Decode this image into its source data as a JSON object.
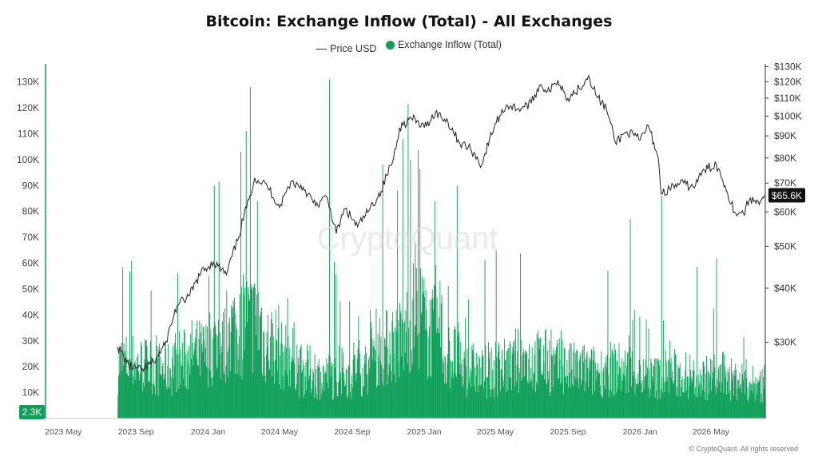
{
  "chart_data": {
    "type": "bar",
    "title": "Bitcoin: Exchange Inflow (Total) - All Exchanges",
    "legend_position": "top-center",
    "grid": false,
    "watermark": "CryptoQuant",
    "copyright": "© CryptoQuant. All rights reserved",
    "x_ticks": [
      "2023 May",
      "2023 Sep",
      "2024 Jan",
      "2024 May",
      "2024 Sep",
      "2025 Jan",
      "2025 May",
      "2025 Sep",
      "2026 Jan",
      "2026 May"
    ],
    "x_range": [
      "2023-04-01",
      "2026-08-01"
    ],
    "series": [
      {
        "name": "Price USD",
        "type": "line",
        "axis": "right",
        "color": "#222222",
        "dates": [
          "2023-08-01",
          "2023-08-20",
          "2023-09-10",
          "2023-10-01",
          "2023-10-20",
          "2023-11-10",
          "2023-12-01",
          "2023-12-20",
          "2024-01-10",
          "2024-02-01",
          "2024-02-20",
          "2024-03-10",
          "2024-03-20",
          "2024-04-10",
          "2024-05-01",
          "2024-05-20",
          "2024-06-10",
          "2024-07-01",
          "2024-07-20",
          "2024-08-05",
          "2024-08-20",
          "2024-09-10",
          "2024-10-01",
          "2024-10-20",
          "2024-11-10",
          "2024-11-20",
          "2024-12-10",
          "2025-01-01",
          "2025-01-20",
          "2025-02-10",
          "2025-03-01",
          "2025-03-20",
          "2025-04-08",
          "2025-05-01",
          "2025-05-20",
          "2025-06-10",
          "2025-07-01",
          "2025-07-15",
          "2025-08-01",
          "2025-08-15",
          "2025-09-01",
          "2025-09-20",
          "2025-10-06",
          "2025-10-20",
          "2025-11-05",
          "2025-11-20",
          "2025-12-10",
          "2026-01-01",
          "2026-01-15",
          "2026-02-01",
          "2026-02-06",
          "2026-02-20",
          "2026-03-10",
          "2026-04-01",
          "2026-04-20",
          "2026-05-10",
          "2026-05-25",
          "2026-06-10",
          "2026-06-25",
          "2026-07-05",
          "2026-07-20",
          "2026-07-31"
        ],
        "values": [
          29300,
          26500,
          25800,
          27000,
          29500,
          36500,
          38500,
          43500,
          46000,
          43000,
          51500,
          64000,
          72000,
          69000,
          61500,
          70500,
          68500,
          62000,
          65000,
          53500,
          61000,
          55500,
          61000,
          67000,
          80000,
          94000,
          99000,
          94000,
          102000,
          97000,
          87000,
          84000,
          77000,
          96000,
          106000,
          104000,
          107000,
          118000,
          114000,
          121000,
          110000,
          116000,
          124000,
          111000,
          104000,
          87000,
          92000,
          88000,
          95000,
          80000,
          66000,
          68000,
          70000,
          68500,
          75000,
          77500,
          69000,
          60000,
          59500,
          64000,
          63500,
          65600
        ],
        "last_value_label": "$65.6K"
      },
      {
        "name": "Exchange Inflow (Total)",
        "type": "bar",
        "axis": "left",
        "color": "#0f9f58",
        "start_date": "2023-08-01",
        "end_date": "2026-07-31",
        "baseline_by_month": [
          26000,
          25000,
          23000,
          27000,
          30000,
          34000,
          42000,
          45000,
          35000,
          29000,
          22000,
          20000,
          20000,
          24000,
          33000,
          36000,
          48000,
          40000,
          29000,
          23000,
          21000,
          24000,
          27000,
          27000,
          24000,
          23000,
          22000,
          23000,
          22000,
          19000,
          21000,
          20000,
          19000,
          20000,
          18000,
          16000
        ],
        "spikes": [
          {
            "date": "2024-03-12",
            "value": 128000
          },
          {
            "date": "2024-03-05",
            "value": 111000
          },
          {
            "date": "2024-02-25",
            "value": 103000
          },
          {
            "date": "2024-07-24",
            "value": 131000
          },
          {
            "date": "2024-11-25",
            "value": 108000
          },
          {
            "date": "2024-12-08",
            "value": 100000
          },
          {
            "date": "2024-11-16",
            "value": 88000
          },
          {
            "date": "2025-01-18",
            "value": 84000
          },
          {
            "date": "2025-02-25",
            "value": 90000
          },
          {
            "date": "2026-02-06",
            "value": 86000
          },
          {
            "date": "2025-12-15",
            "value": 77000
          },
          {
            "date": "2024-01-11",
            "value": 90000
          },
          {
            "date": "2024-03-24",
            "value": 84000
          },
          {
            "date": "2026-05-10",
            "value": 62000
          }
        ],
        "last_value_label": "2.3K"
      }
    ],
    "y_left": {
      "ticks": [
        "10K",
        "20K",
        "30K",
        "40K",
        "50K",
        "60K",
        "70K",
        "80K",
        "90K",
        "100K",
        "110K",
        "120K",
        "130K"
      ],
      "range": [
        0,
        137000
      ]
    },
    "y_right": {
      "scale": "log",
      "ticks": [
        "$30K",
        "$40K",
        "$50K",
        "$60K",
        "$70K",
        "$80K",
        "$90K",
        "$100K",
        "$110K",
        "$120K",
        "$130K"
      ],
      "range": [
        20000,
        132000
      ]
    }
  }
}
